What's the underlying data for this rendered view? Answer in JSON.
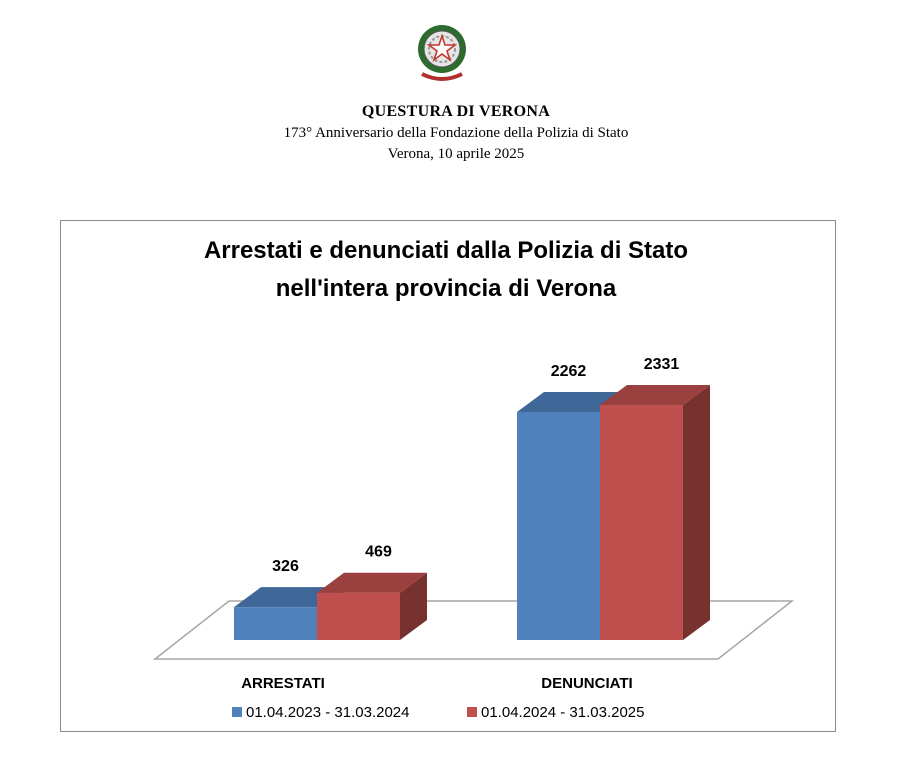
{
  "header": {
    "line1": "QUESTURA DI VERONA",
    "line2": "173° Anniversario della Fondazione della Polizia di Stato",
    "line3": "Verona, 10 aprile 2025"
  },
  "chart_data": {
    "type": "bar",
    "title_lines": [
      "Arrestati e denunciati dalla Polizia di Stato",
      "nell'intera provincia di Verona"
    ],
    "categories": [
      "ARRESTATI",
      "DENUNCIATI"
    ],
    "series": [
      {
        "name": "01.04.2023 - 31.03.2024",
        "values": [
          326,
          2262
        ],
        "color": "#4f81bd"
      },
      {
        "name": "01.04.2024 - 31.03.2025",
        "values": [
          469,
          2331
        ],
        "color": "#c0504d"
      }
    ],
    "ylim": [
      0,
      2331
    ],
    "grid": false,
    "legend_position": "bottom",
    "style_3d": true
  },
  "icons": {
    "emblem": "italian-republic-emblem-icon"
  }
}
